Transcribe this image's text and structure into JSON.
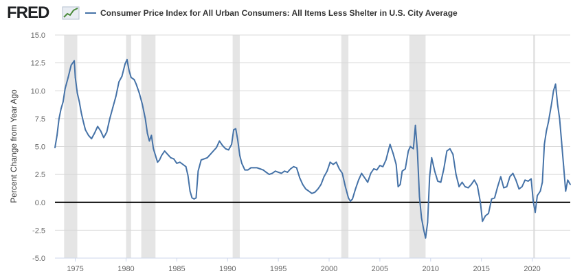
{
  "header": {
    "logo_text": "FRED",
    "logo_icon": "line-chart-icon",
    "series_title": "Consumer Price Index for All Urban Consumers: All Items Less Shelter in U.S. City Average"
  },
  "colors": {
    "series_line": "#4572a7",
    "recession_band": "#e5e5e5",
    "zero_line": "#000000",
    "grid": "#d8d8d8"
  },
  "chart_data": {
    "type": "line",
    "title": "Consumer Price Index for All Urban Consumers: All Items Less Shelter in U.S. City Average",
    "xlabel": "",
    "ylabel": "Percent Change from Year Ago",
    "xlim": [
      1973.0,
      2023.75
    ],
    "ylim": [
      -5.0,
      15.0
    ],
    "grid": "horizontal",
    "x_ticks": [
      "1975",
      "1980",
      "1985",
      "1990",
      "1995",
      "2000",
      "2005",
      "2010",
      "2015",
      "2020"
    ],
    "y_ticks": [
      "15.0",
      "12.5",
      "10.0",
      "7.5",
      "5.0",
      "2.5",
      "0.0",
      "-2.5",
      "-5.0"
    ],
    "recessions": [
      [
        1973.9,
        1975.2
      ],
      [
        1980.0,
        1980.5
      ],
      [
        1981.5,
        1982.9
      ],
      [
        1990.5,
        1991.2
      ],
      [
        2001.2,
        2001.9
      ],
      [
        2007.9,
        2009.5
      ],
      [
        2020.1,
        2020.3
      ]
    ],
    "series": [
      {
        "name": "Consumer Price Index for All Urban Consumers: All Items Less Shelter in U.S. City Average",
        "x": [
          1973.0,
          1973.2,
          1973.4,
          1973.6,
          1973.8,
          1974.0,
          1974.3,
          1974.6,
          1974.9,
          1975.0,
          1975.2,
          1975.4,
          1975.6,
          1975.8,
          1976.0,
          1976.3,
          1976.6,
          1976.9,
          1977.2,
          1977.5,
          1977.8,
          1978.1,
          1978.4,
          1978.7,
          1979.0,
          1979.3,
          1979.6,
          1979.9,
          1980.1,
          1980.3,
          1980.5,
          1980.8,
          1981.0,
          1981.3,
          1981.6,
          1981.9,
          1982.1,
          1982.3,
          1982.5,
          1982.7,
          1982.9,
          1983.1,
          1983.3,
          1983.5,
          1983.8,
          1984.1,
          1984.4,
          1984.7,
          1985.0,
          1985.3,
          1985.6,
          1985.9,
          1986.1,
          1986.3,
          1986.5,
          1986.7,
          1986.9,
          1987.1,
          1987.4,
          1987.7,
          1988.0,
          1988.3,
          1988.6,
          1988.9,
          1989.2,
          1989.5,
          1989.8,
          1990.1,
          1990.4,
          1990.6,
          1990.8,
          1991.0,
          1991.2,
          1991.4,
          1991.7,
          1992.0,
          1992.3,
          1992.6,
          1992.9,
          1993.2,
          1993.5,
          1993.8,
          1994.1,
          1994.4,
          1994.7,
          1995.0,
          1995.3,
          1995.6,
          1995.9,
          1996.2,
          1996.5,
          1996.8,
          1997.1,
          1997.4,
          1997.7,
          1998.0,
          1998.3,
          1998.6,
          1998.9,
          1999.2,
          1999.5,
          1999.8,
          2000.1,
          2000.4,
          2000.7,
          2001.0,
          2001.3,
          2001.6,
          2001.9,
          2002.1,
          2002.3,
          2002.6,
          2002.9,
          2003.2,
          2003.5,
          2003.8,
          2004.1,
          2004.4,
          2004.7,
          2005.0,
          2005.3,
          2005.6,
          2005.8,
          2006.0,
          2006.3,
          2006.6,
          2006.8,
          2007.0,
          2007.2,
          2007.5,
          2007.8,
          2008.0,
          2008.3,
          2008.5,
          2008.7,
          2008.9,
          2009.1,
          2009.3,
          2009.5,
          2009.7,
          2009.9,
          2010.1,
          2010.4,
          2010.7,
          2011.0,
          2011.3,
          2011.6,
          2011.9,
          2012.2,
          2012.5,
          2012.8,
          2013.1,
          2013.4,
          2013.7,
          2014.0,
          2014.3,
          2014.6,
          2014.9,
          2015.1,
          2015.4,
          2015.7,
          2016.0,
          2016.3,
          2016.6,
          2016.9,
          2017.2,
          2017.5,
          2017.8,
          2018.1,
          2018.4,
          2018.7,
          2019.0,
          2019.3,
          2019.6,
          2019.9,
          2020.1,
          2020.3,
          2020.5,
          2020.8,
          2021.0,
          2021.2,
          2021.4,
          2021.6,
          2021.9,
          2022.1,
          2022.3,
          2022.5,
          2022.7,
          2022.9,
          2023.1,
          2023.3,
          2023.5,
          2023.75
        ],
        "values": [
          4.9,
          6.0,
          7.5,
          8.4,
          9.0,
          10.2,
          11.2,
          12.3,
          12.7,
          11.2,
          9.8,
          9.0,
          8.0,
          7.2,
          6.5,
          6.0,
          5.7,
          6.2,
          6.8,
          6.4,
          5.8,
          6.3,
          7.5,
          8.5,
          9.5,
          10.8,
          11.3,
          12.4,
          12.8,
          11.8,
          11.2,
          11.0,
          10.6,
          9.8,
          8.8,
          7.5,
          6.2,
          5.5,
          6.0,
          4.8,
          4.2,
          3.6,
          3.8,
          4.2,
          4.6,
          4.3,
          4.0,
          3.9,
          3.5,
          3.6,
          3.4,
          3.2,
          2.4,
          1.0,
          0.4,
          0.3,
          0.4,
          2.8,
          3.8,
          3.9,
          4.0,
          4.3,
          4.6,
          4.9,
          5.5,
          5.1,
          4.8,
          4.7,
          5.2,
          6.5,
          6.6,
          5.6,
          4.2,
          3.5,
          2.9,
          2.9,
          3.1,
          3.1,
          3.1,
          3.0,
          2.9,
          2.7,
          2.5,
          2.6,
          2.8,
          2.7,
          2.6,
          2.8,
          2.7,
          3.0,
          3.2,
          3.1,
          2.2,
          1.6,
          1.2,
          1.0,
          0.8,
          0.9,
          1.2,
          1.6,
          2.3,
          2.8,
          3.6,
          3.4,
          3.6,
          3.0,
          2.6,
          1.4,
          0.4,
          0.1,
          0.3,
          1.2,
          2.0,
          2.6,
          2.2,
          1.8,
          2.6,
          3.0,
          2.9,
          3.3,
          3.2,
          3.8,
          4.5,
          5.2,
          4.4,
          3.4,
          1.4,
          1.6,
          2.8,
          3.0,
          4.6,
          5.0,
          4.8,
          6.9,
          4.5,
          0.5,
          -1.4,
          -2.4,
          -3.2,
          -1.8,
          2.3,
          4.0,
          2.8,
          1.9,
          1.8,
          3.0,
          4.6,
          4.8,
          4.3,
          2.5,
          1.4,
          1.8,
          1.4,
          1.3,
          1.6,
          2.0,
          1.5,
          0.0,
          -1.7,
          -1.2,
          -1.0,
          0.3,
          0.4,
          1.4,
          2.3,
          1.3,
          1.4,
          2.3,
          2.6,
          2.0,
          1.2,
          1.4,
          2.0,
          1.9,
          2.1,
          0.1,
          -0.9,
          0.6,
          1.0,
          1.8,
          5.2,
          6.4,
          7.2,
          8.8,
          10.0,
          10.6,
          8.8,
          7.5,
          5.4,
          3.2,
          1.0,
          2.0,
          1.6
        ]
      }
    ]
  }
}
